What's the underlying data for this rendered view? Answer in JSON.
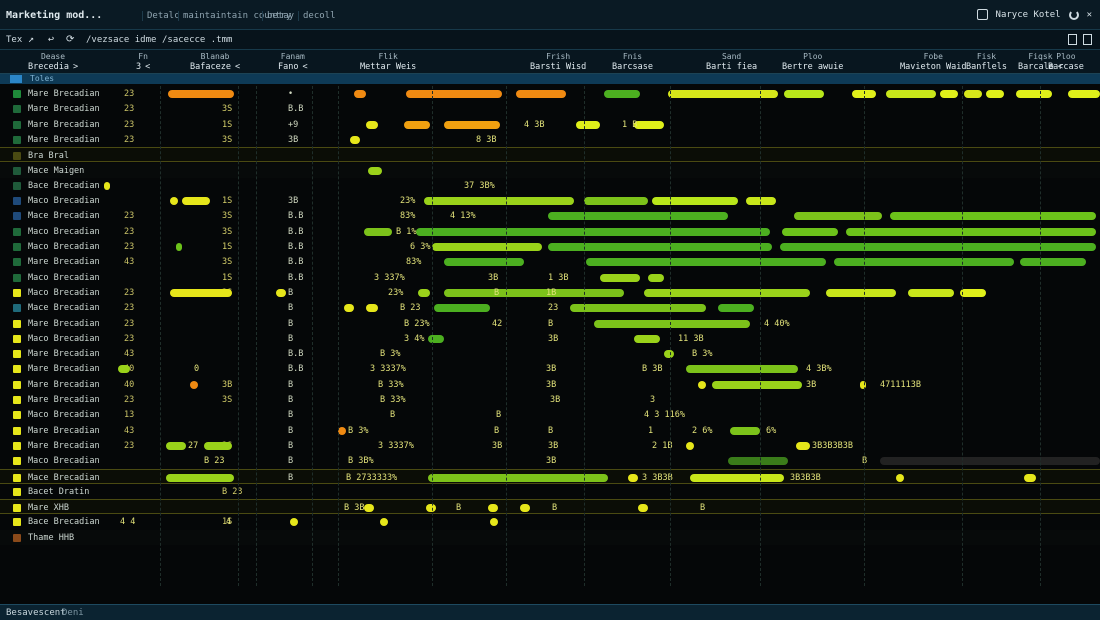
{
  "window": {
    "title": "Marketing mod...",
    "menu": [
      "Detalc",
      "maintaintain country",
      "betay",
      "decoll"
    ],
    "right_label": "Naryce Kotel",
    "icons": [
      "window-icon",
      "refresh-icon",
      "close-icon"
    ]
  },
  "toolbar": {
    "label": "Tex",
    "path_1": "/vezsace idme",
    "path_2": "/sacecce .tmm",
    "icons": [
      "arrow-icon",
      "back-icon",
      "refresh-icon"
    ]
  },
  "columns": [
    {
      "top": "Dease",
      "label": "Brecedia",
      "caret": ">"
    },
    {
      "top": "Fn",
      "label": "3",
      "caret": "<"
    },
    {
      "top": "Blanab",
      "label": "Bafaceze",
      "caret": "<"
    },
    {
      "top": "Fanam",
      "label": "Fano",
      "caret": "<"
    },
    {
      "top": "Flik",
      "label": "Mettar Weis",
      "caret": ""
    },
    {
      "top": "Frish",
      "label": "Barsti Wisd",
      "caret": ""
    },
    {
      "top": "Fnis",
      "label": "Barcsase",
      "caret": ""
    },
    {
      "top": "Sand",
      "label": "Barti fiea",
      "caret": ""
    },
    {
      "top": "Ploo",
      "label": "Bertre awuie",
      "caret": ""
    },
    {
      "top": "Fobe",
      "label": "Mavieton Waid",
      "caret": ""
    },
    {
      "top": "Fisk",
      "label": "Banflels",
      "caret": ""
    },
    {
      "top": "Fiqsk",
      "label": "Barcale",
      "caret": "<"
    },
    {
      "top": "Ploo",
      "label": "Barcase",
      "caret": ""
    }
  ],
  "selection": {
    "label": "Toles"
  },
  "rows": [
    {
      "label": "Mare Brecadian",
      "n": "23",
      "c3": "",
      "c4": "•",
      "sq": "#1f8a3a",
      "type": "",
      "vals": [],
      "bars": [
        {
          "x": 168,
          "w": 66,
          "c": "#f08a12"
        },
        {
          "x": 354,
          "w": 12,
          "c": "#f08a12"
        },
        {
          "x": 406,
          "w": 96,
          "c": "#f08a12"
        },
        {
          "x": 516,
          "w": 50,
          "c": "#f08a12"
        },
        {
          "x": 604,
          "w": 36,
          "c": "#4caf20"
        },
        {
          "x": 668,
          "w": 110,
          "c": "#d6e61a"
        },
        {
          "x": 784,
          "w": 40,
          "c": "#b8e61a"
        },
        {
          "x": 852,
          "w": 24,
          "c": "#e0f01a"
        },
        {
          "x": 886,
          "w": 50,
          "c": "#c8e61a"
        },
        {
          "x": 940,
          "w": 18,
          "c": "#e0f01a"
        },
        {
          "x": 964,
          "w": 18,
          "c": "#d6e61a"
        },
        {
          "x": 986,
          "w": 18,
          "c": "#e0f01a"
        },
        {
          "x": 1016,
          "w": 36,
          "c": "#e0f01a"
        },
        {
          "x": 1068,
          "w": 32,
          "c": "#e0f01a"
        }
      ]
    },
    {
      "label": "Mare Brecadian",
      "n": "23",
      "c3": "3S",
      "c4": "B.B",
      "sq": "#1f6a3a",
      "type": "",
      "vals": [],
      "bars": []
    },
    {
      "label": "Mare Brecadian",
      "n": "23",
      "c3": "1S",
      "c4": "+9",
      "sq": "#1f6a3a",
      "type": "",
      "vals": [
        {
          "x": 524,
          "t": "4 3B"
        },
        {
          "x": 622,
          "t": "1 B"
        }
      ],
      "bars": [
        {
          "x": 366,
          "w": 12,
          "c": "#e6e61a"
        },
        {
          "x": 404,
          "w": 26,
          "c": "#f0a010"
        },
        {
          "x": 444,
          "w": 56,
          "c": "#f0a010"
        },
        {
          "x": 576,
          "w": 24,
          "c": "#e0f01a"
        },
        {
          "x": 634,
          "w": 30,
          "c": "#e0f01a"
        }
      ]
    },
    {
      "label": "Mare Brecadian",
      "n": "23",
      "c3": "3S",
      "c4": "3B",
      "sq": "#1f6a3a",
      "type": "",
      "vals": [
        {
          "x": 476,
          "t": "8 3B"
        }
      ],
      "bars": [
        {
          "x": 350,
          "w": 10,
          "c": "#e6e61a"
        }
      ]
    },
    {
      "label": "Bra Bral",
      "n": "",
      "c3": "",
      "c4": "",
      "sq": "#4a4a12",
      "type": "group",
      "vals": [],
      "bars": []
    },
    {
      "label": "Mace Maigen",
      "n": "",
      "c3": "",
      "c4": "",
      "sq": "#1f5a3a",
      "type": "alt",
      "vals": [],
      "bars": [
        {
          "x": 368,
          "w": 14,
          "c": "#9ad21a"
        }
      ]
    },
    {
      "label": "Bace Brecadian",
      "n": "",
      "c3": "",
      "c4": "",
      "sq": "#1f5a3a",
      "type": "",
      "vals": [
        {
          "x": 464,
          "t": "37 3B%"
        }
      ],
      "bars": [
        {
          "x": 104,
          "w": 6,
          "c": "#e6e61a"
        }
      ]
    },
    {
      "label": "Maco Brecadian",
      "n": "",
      "c3": "1S",
      "c4": "3B",
      "sq": "#1f4a7a",
      "type": "",
      "vals": [
        {
          "x": 400,
          "t": "23%"
        }
      ],
      "bars": [
        {
          "x": 170,
          "w": 8,
          "c": "#e6e61a"
        },
        {
          "x": 182,
          "w": 28,
          "c": "#e6e61a"
        },
        {
          "x": 424,
          "w": 150,
          "c": "#9ad21a"
        },
        {
          "x": 584,
          "w": 64,
          "c": "#7cc21a"
        },
        {
          "x": 652,
          "w": 86,
          "c": "#b8e61a"
        },
        {
          "x": 746,
          "w": 30,
          "c": "#c8e61a"
        }
      ]
    },
    {
      "label": "Mace Brecadian",
      "n": "23",
      "c3": "3S",
      "c4": "B.B",
      "sq": "#1f4a7a",
      "type": "",
      "vals": [
        {
          "x": 400,
          "t": "83%"
        },
        {
          "x": 450,
          "t": "4 13%"
        }
      ],
      "bars": [
        {
          "x": 548,
          "w": 180,
          "c": "#4caf20"
        },
        {
          "x": 794,
          "w": 88,
          "c": "#7cc21a"
        },
        {
          "x": 890,
          "w": 206,
          "c": "#6cc21a"
        }
      ]
    },
    {
      "label": "Maco Brecadian",
      "n": "23",
      "c3": "3S",
      "c4": "B.B",
      "sq": "#1f6a3a",
      "type": "",
      "vals": [
        {
          "x": 396,
          "t": "B 1%"
        }
      ],
      "bars": [
        {
          "x": 364,
          "w": 28,
          "c": "#7cc21a"
        },
        {
          "x": 416,
          "w": 354,
          "c": "#4caf20"
        },
        {
          "x": 782,
          "w": 56,
          "c": "#6cc21a"
        },
        {
          "x": 846,
          "w": 250,
          "c": "#6cc21a"
        }
      ]
    },
    {
      "label": "Maco Brecadian",
      "n": "23",
      "c3": "1S",
      "c4": "B.B",
      "sq": "#1f6a3a",
      "type": "",
      "vals": [
        {
          "x": 410,
          "t": "6 3%"
        }
      ],
      "bars": [
        {
          "x": 176,
          "w": 6,
          "c": "#6cc21a"
        },
        {
          "x": 432,
          "w": 110,
          "c": "#9ad21a"
        },
        {
          "x": 548,
          "w": 224,
          "c": "#4caf20"
        },
        {
          "x": 780,
          "w": 316,
          "c": "#4caf20"
        }
      ]
    },
    {
      "label": "Mare Brecadian",
      "n": "43",
      "c3": "3S",
      "c4": "B.B",
      "sq": "#1f6a3a",
      "type": "",
      "vals": [
        {
          "x": 406,
          "t": "83%"
        }
      ],
      "bars": [
        {
          "x": 444,
          "w": 80,
          "c": "#4caf20"
        },
        {
          "x": 586,
          "w": 240,
          "c": "#4caf20"
        },
        {
          "x": 834,
          "w": 180,
          "c": "#4caf20"
        },
        {
          "x": 1020,
          "w": 66,
          "c": "#4caf20"
        }
      ]
    },
    {
      "label": "Maco Brecadian",
      "n": "",
      "c3": "1S",
      "c4": "B.B",
      "sq": "#1f6a3a",
      "type": "",
      "vals": [
        {
          "x": 374,
          "t": "3 337%"
        },
        {
          "x": 488,
          "t": "3B"
        },
        {
          "x": 548,
          "t": "1 3B"
        }
      ],
      "bars": [
        {
          "x": 600,
          "w": 40,
          "c": "#9ad21a"
        },
        {
          "x": 648,
          "w": 16,
          "c": "#9ad21a"
        }
      ]
    },
    {
      "label": "Maco Brecadian",
      "n": "23",
      "c3": "3S",
      "c4": "B",
      "sq": "#e6e61a",
      "type": "",
      "vals": [
        {
          "x": 388,
          "t": "23%"
        },
        {
          "x": 494,
          "t": "B"
        },
        {
          "x": 546,
          "t": "1B"
        }
      ],
      "bars": [
        {
          "x": 170,
          "w": 62,
          "c": "#e6e61a"
        },
        {
          "x": 276,
          "w": 10,
          "c": "#e6e61a"
        },
        {
          "x": 418,
          "w": 12,
          "c": "#9ad21a"
        },
        {
          "x": 444,
          "w": 180,
          "c": "#7cc21a"
        },
        {
          "x": 644,
          "w": 166,
          "c": "#9ad21a"
        },
        {
          "x": 826,
          "w": 70,
          "c": "#c8e61a"
        },
        {
          "x": 908,
          "w": 46,
          "c": "#c8e61a"
        },
        {
          "x": 960,
          "w": 26,
          "c": "#e0f01a"
        }
      ]
    },
    {
      "label": "Mace Brecadian",
      "n": "23",
      "c3": "",
      "c4": "B",
      "sq": "#1f6a7a",
      "type": "",
      "vals": [
        {
          "x": 400,
          "t": "B 23"
        },
        {
          "x": 548,
          "t": "23"
        }
      ],
      "bars": [
        {
          "x": 344,
          "w": 10,
          "c": "#e6e61a"
        },
        {
          "x": 366,
          "w": 12,
          "c": "#e6e61a"
        },
        {
          "x": 434,
          "w": 56,
          "c": "#4caf20"
        },
        {
          "x": 570,
          "w": 136,
          "c": "#7cc21a"
        },
        {
          "x": 718,
          "w": 36,
          "c": "#4caf20"
        }
      ]
    },
    {
      "label": "Mare Brecadian",
      "n": "23",
      "c3": "",
      "c4": "B",
      "sq": "#e6e61a",
      "type": "",
      "vals": [
        {
          "x": 404,
          "t": "B 23%"
        },
        {
          "x": 492,
          "t": "42"
        },
        {
          "x": 548,
          "t": "B"
        },
        {
          "x": 764,
          "t": "4 40%"
        }
      ],
      "bars": [
        {
          "x": 594,
          "w": 156,
          "c": "#7cc21a"
        }
      ]
    },
    {
      "label": "Maco Brecadian",
      "n": "23",
      "c3": "",
      "c4": "B",
      "sq": "#e6e61a",
      "type": "",
      "vals": [
        {
          "x": 404,
          "t": "3 4%"
        },
        {
          "x": 548,
          "t": "3B"
        },
        {
          "x": 678,
          "t": "11 3B"
        }
      ],
      "bars": [
        {
          "x": 428,
          "w": 16,
          "c": "#4caf20"
        },
        {
          "x": 634,
          "w": 26,
          "c": "#9ad21a"
        }
      ]
    },
    {
      "label": "Mare Brecadian",
      "n": "43",
      "c3": "",
      "c4": "B.B",
      "sq": "#e6e61a",
      "type": "",
      "vals": [
        {
          "x": 380,
          "t": "B 3%"
        },
        {
          "x": 692,
          "t": "B 3%"
        }
      ],
      "bars": [
        {
          "x": 664,
          "w": 10,
          "c": "#9ad21a"
        }
      ]
    },
    {
      "label": "Mare Brecadian",
      "n": "40",
      "c3": "",
      "c4": "B.B",
      "sq": "#e6e61a",
      "type": "",
      "vals": [
        {
          "x": 194,
          "t": "0"
        },
        {
          "x": 370,
          "t": "3 3337%"
        },
        {
          "x": 546,
          "t": "3B"
        },
        {
          "x": 642,
          "t": "B 3B"
        },
        {
          "x": 806,
          "t": "4 3B%"
        }
      ],
      "bars": [
        {
          "x": 118,
          "w": 12,
          "c": "#9ad21a"
        },
        {
          "x": 686,
          "w": 112,
          "c": "#7cc21a"
        }
      ]
    },
    {
      "label": "Mare Brecadian",
      "n": "40",
      "c3": "3B",
      "c4": "B",
      "sq": "#e6e61a",
      "type": "",
      "vals": [
        {
          "x": 378,
          "t": "B 33%"
        },
        {
          "x": 546,
          "t": "3B"
        },
        {
          "x": 806,
          "t": "3B"
        },
        {
          "x": 880,
          "t": "4711113B"
        }
      ],
      "bars": [
        {
          "x": 190,
          "w": 8,
          "c": "#f08a12"
        },
        {
          "x": 698,
          "w": 8,
          "c": "#e6e61a"
        },
        {
          "x": 712,
          "w": 90,
          "c": "#9ad21a"
        },
        {
          "x": 860,
          "w": 6,
          "c": "#e6e61a"
        }
      ]
    },
    {
      "label": "Mare Brecadian",
      "n": "23",
      "c3": "3S",
      "c4": "B",
      "sq": "#e6e61a",
      "type": "",
      "vals": [
        {
          "x": 380,
          "t": "B 33%"
        },
        {
          "x": 550,
          "t": "3B"
        },
        {
          "x": 650,
          "t": "3"
        }
      ],
      "bars": []
    },
    {
      "label": "Maco Brecadian",
      "n": "13",
      "c3": "",
      "c4": "B",
      "sq": "#e6e61a",
      "type": "",
      "vals": [
        {
          "x": 390,
          "t": "B"
        },
        {
          "x": 496,
          "t": "B"
        },
        {
          "x": 644,
          "t": "4 3 116%"
        }
      ],
      "bars": []
    },
    {
      "label": "Mare Brecadian",
      "n": "43",
      "c3": "",
      "c4": "B",
      "sq": "#e6e61a",
      "type": "",
      "vals": [
        {
          "x": 348,
          "t": "B 3%"
        },
        {
          "x": 494,
          "t": "B"
        },
        {
          "x": 548,
          "t": "B"
        },
        {
          "x": 648,
          "t": "1"
        },
        {
          "x": 692,
          "t": "2 6%"
        },
        {
          "x": 766,
          "t": "6%"
        }
      ],
      "bars": [
        {
          "x": 338,
          "w": 8,
          "c": "#f08a12"
        },
        {
          "x": 730,
          "w": 30,
          "c": "#7cc21a"
        }
      ]
    },
    {
      "label": "Mare Brecadian",
      "n": "23",
      "c3": "3S",
      "c4": "B",
      "sq": "#e6e61a",
      "type": "",
      "vals": [
        {
          "x": 188,
          "t": "27"
        },
        {
          "x": 378,
          "t": "3 3337%"
        },
        {
          "x": 492,
          "t": "3B"
        },
        {
          "x": 548,
          "t": "3B"
        },
        {
          "x": 652,
          "t": "2 1B"
        },
        {
          "x": 812,
          "t": "3B3B3B3B"
        }
      ],
      "bars": [
        {
          "x": 166,
          "w": 20,
          "c": "#9ad21a"
        },
        {
          "x": 204,
          "w": 28,
          "c": "#9ad21a"
        },
        {
          "x": 686,
          "w": 8,
          "c": "#e6e61a"
        },
        {
          "x": 796,
          "w": 14,
          "c": "#e6e61a"
        }
      ]
    },
    {
      "label": "Maco Brecadian",
      "n": "",
      "c3": "",
      "c4": "B",
      "sq": "#e6e61a",
      "type": "",
      "vals": [
        {
          "x": 204,
          "t": "B 23"
        },
        {
          "x": 348,
          "t": "B 3B%"
        },
        {
          "x": 546,
          "t": "3B"
        },
        {
          "x": 862,
          "t": "B"
        }
      ],
      "bars": [
        {
          "x": 728,
          "w": 60,
          "c": "#3a7c1a"
        },
        {
          "x": 880,
          "w": 220,
          "c": "#222"
        }
      ]
    },
    {
      "label": "Mace Brecadian",
      "n": "",
      "c3": "",
      "c4": "B",
      "sq": "#e6e61a",
      "type": "group",
      "vals": [
        {
          "x": 346,
          "t": "B 2733333%"
        },
        {
          "x": 642,
          "t": "3 3B3B"
        },
        {
          "x": 790,
          "t": "3B3B3B"
        }
      ],
      "bars": [
        {
          "x": 166,
          "w": 68,
          "c": "#9ad21a"
        },
        {
          "x": 428,
          "w": 180,
          "c": "#7cc21a"
        },
        {
          "x": 628,
          "w": 10,
          "c": "#e6e61a"
        },
        {
          "x": 690,
          "w": 94,
          "c": "#c8e61a"
        },
        {
          "x": 896,
          "w": 8,
          "c": "#e6e61a"
        },
        {
          "x": 1024,
          "w": 12,
          "c": "#e6e61a"
        }
      ]
    },
    {
      "label": "Bacet Dratin",
      "n": "",
      "c3": "B 23",
      "c4": "",
      "sq": "#e6e61a",
      "type": "",
      "vals": [],
      "bars": []
    },
    {
      "label": "Mare XHB",
      "n": "",
      "c3": "",
      "c4": "",
      "sq": "#e6e61a",
      "type": "group",
      "vals": [
        {
          "x": 344,
          "t": "B 3B"
        },
        {
          "x": 456,
          "t": "B"
        },
        {
          "x": 552,
          "t": "B"
        },
        {
          "x": 700,
          "t": "B"
        }
      ],
      "bars": [
        {
          "x": 364,
          "w": 10,
          "c": "#e6e61a"
        },
        {
          "x": 426,
          "w": 10,
          "c": "#e6e61a"
        },
        {
          "x": 488,
          "w": 10,
          "c": "#e6e61a"
        },
        {
          "x": 520,
          "w": 10,
          "c": "#e6e61a"
        },
        {
          "x": 638,
          "w": 10,
          "c": "#e6e61a"
        }
      ]
    },
    {
      "label": "Bace Brecadian",
      "n": "",
      "c3": "1S",
      "c4": "",
      "sq": "#e6e61a",
      "type": "",
      "vals": [
        {
          "x": 120,
          "t": "4 4"
        },
        {
          "x": 226,
          "t": "4"
        }
      ],
      "bars": [
        {
          "x": 290,
          "w": 8,
          "c": "#e6e61a"
        },
        {
          "x": 380,
          "w": 8,
          "c": "#e6e61a"
        },
        {
          "x": 490,
          "w": 8,
          "c": "#e6e61a"
        }
      ]
    },
    {
      "label": "Thame HHB",
      "n": "",
      "c3": "",
      "c4": "",
      "sq": "#8a4a1a",
      "type": "alt",
      "vals": [],
      "bars": []
    }
  ],
  "status": {
    "left": "Besavescent",
    "right": "Deni"
  }
}
